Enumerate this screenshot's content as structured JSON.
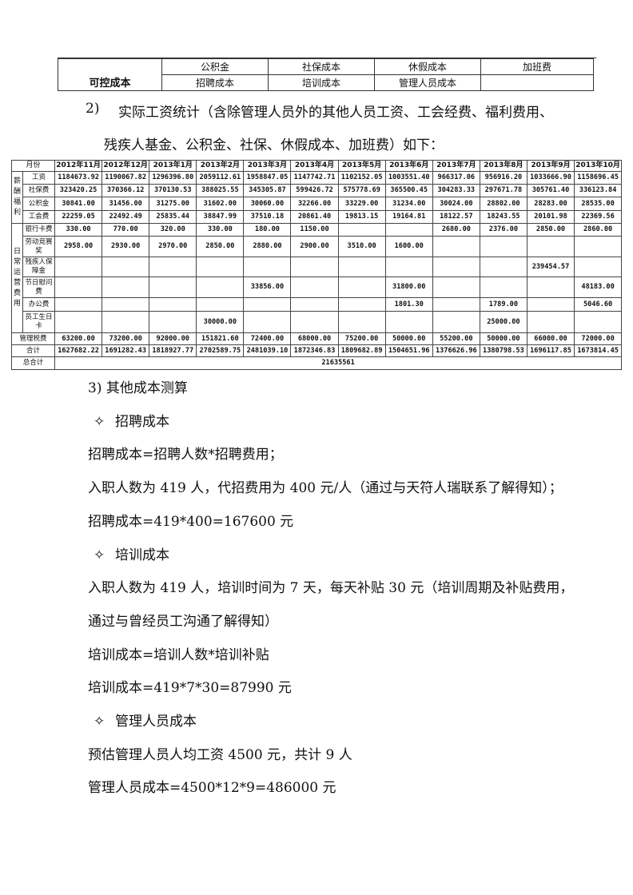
{
  "controllable_cost_table": {
    "label": "可控成本",
    "row1": [
      "公积金",
      "社保成本",
      "休假成本",
      "加班费"
    ],
    "row2": [
      "招聘成本",
      "培训成本",
      "管理人员成本",
      ""
    ]
  },
  "section2": {
    "number": "2)",
    "line1": "实际工资统计（含除管理人员外的其他人员工资、工会经费、福利费用、",
    "line2": "残疾人基金、公积金、社保、休假成本、加班费）如下："
  },
  "wage_table": {
    "header_label": "月份",
    "months": [
      "2012年11月",
      "2012年12月",
      "2013年1月",
      "2013年2月",
      "2013年3月",
      "2013年4月",
      "2013年5月",
      "2013年6月",
      "2013年7月",
      "2013年8月",
      "2013年9月",
      "2013年10月"
    ],
    "group_salary": "薪酬福利",
    "group_operating": "日常运营费用",
    "rows": [
      {
        "item": "工资",
        "values": [
          "1184673.92",
          "1190067.82",
          "1296396.80",
          "2059112.61",
          "1958847.05",
          "1147742.71",
          "1102152.05",
          "1003551.40",
          "966317.06",
          "956916.20",
          "1033666.90",
          "1158696.45"
        ]
      },
      {
        "item": "社保费",
        "values": [
          "323420.25",
          "370366.12",
          "370130.53",
          "388025.55",
          "345305.87",
          "599426.72",
          "575778.69",
          "365500.45",
          "304283.33",
          "297671.78",
          "305761.40",
          "336123.84"
        ]
      },
      {
        "item": "公积金",
        "values": [
          "30841.00",
          "31456.00",
          "31275.00",
          "31602.00",
          "30060.00",
          "32266.00",
          "33229.00",
          "31234.00",
          "30024.00",
          "28802.00",
          "28283.00",
          "28535.00"
        ]
      },
      {
        "item": "工会费",
        "values": [
          "22259.05",
          "22492.49",
          "25835.44",
          "38847.99",
          "37510.18",
          "20861.40",
          "19813.15",
          "19164.81",
          "18122.57",
          "18243.55",
          "20101.98",
          "22369.56"
        ]
      },
      {
        "item": "银行卡费",
        "values": [
          "330.00",
          "770.00",
          "320.00",
          "330.00",
          "180.00",
          "1150.00",
          "",
          "",
          "2680.00",
          "2376.00",
          "2850.00",
          "2860.00"
        ]
      },
      {
        "item": "劳动竞赛奖",
        "values": [
          "2958.00",
          "2930.00",
          "2970.00",
          "2850.00",
          "2880.00",
          "2900.00",
          "3510.00",
          "1600.00",
          "",
          "",
          "",
          ""
        ]
      },
      {
        "item": "残疾人保障金",
        "values": [
          "",
          "",
          "",
          "",
          "",
          "",
          "",
          "",
          "",
          "",
          "239454.57",
          ""
        ]
      },
      {
        "item": "节日慰问费",
        "values": [
          "",
          "",
          "",
          "",
          "33856.00",
          "",
          "",
          "31800.00",
          "",
          "",
          "",
          "48183.00"
        ]
      },
      {
        "item": "办公费",
        "values": [
          "",
          "",
          "",
          "",
          "",
          "",
          "",
          "1801.30",
          "",
          "1789.00",
          "",
          "5046.60"
        ]
      },
      {
        "item": "员工生日卡",
        "values": [
          "",
          "",
          "",
          "30000.00",
          "",
          "",
          "",
          "",
          "",
          "25000.00",
          "",
          ""
        ]
      }
    ],
    "management_fee": {
      "item": "管理税费",
      "values": [
        "63200.00",
        "73200.00",
        "92000.00",
        "151821.60",
        "72400.00",
        "68000.00",
        "75200.00",
        "50000.00",
        "55200.00",
        "50000.00",
        "66000.00",
        "72000.00"
      ]
    },
    "subtotal": {
      "item": "合计",
      "values": [
        "1627682.22",
        "1691282.43",
        "1818927.77",
        "2702589.75",
        "2481039.10",
        "1872346.83",
        "1809682.89",
        "1504651.96",
        "1376626.96",
        "1380798.53",
        "1696117.85",
        "1673814.45"
      ]
    },
    "grand_total": {
      "item": "总合计",
      "value": "21635561"
    }
  },
  "body": {
    "lines": [
      {
        "bullet": "",
        "text": "3) 其他成本测算"
      },
      {
        "bullet": "✧",
        "text": "招聘成本"
      },
      {
        "bullet": "",
        "text": "招聘成本=招聘人数*招聘费用；"
      },
      {
        "bullet": "",
        "text": "入职人数为 419 人，代招费用为 400 元/人（通过与天符人瑞联系了解得知）；"
      },
      {
        "bullet": "",
        "text": "招聘成本=419*400=167600 元"
      },
      {
        "bullet": "✧",
        "text": "培训成本"
      },
      {
        "bullet": "",
        "text": "入职人数为 419 人，培训时间为 7 天，每天补贴 30 元（培训周期及补贴费用，"
      },
      {
        "bullet": "",
        "text": "通过与曾经员工沟通了解得知）"
      },
      {
        "bullet": "",
        "text": "培训成本=培训人数*培训补贴"
      },
      {
        "bullet": "",
        "text": "培训成本=419*7*30=87990 元"
      },
      {
        "bullet": "✧",
        "text": "管理人员成本"
      },
      {
        "bullet": "",
        "text": "预估管理人员人均工资 4500 元，共计 9 人"
      },
      {
        "bullet": "",
        "text": "管理人员成本=4500*12*9=486000 元"
      }
    ]
  }
}
